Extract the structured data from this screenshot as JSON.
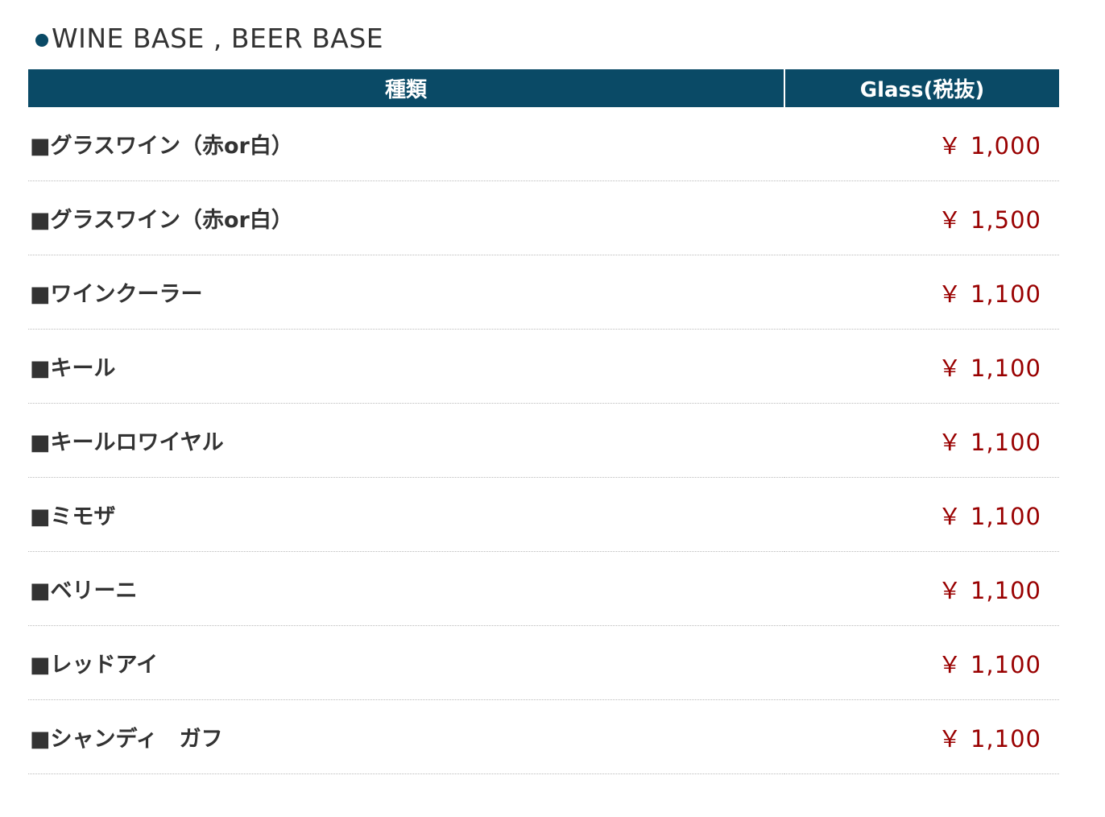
{
  "section_title": "WINE BASE , BEER BASE",
  "colors": {
    "header_bg": "#0a4a66",
    "price": "#990000"
  },
  "table": {
    "headers": [
      "種類",
      "Glass(税抜)"
    ],
    "rows": [
      {
        "name": "■グラスワイン（赤or白）",
        "price": "￥ 1,000"
      },
      {
        "name": "■グラスワイン（赤or白）",
        "price": "￥ 1,500"
      },
      {
        "name": "■ワインクーラー",
        "price": "￥ 1,100"
      },
      {
        "name": "■キール",
        "price": "￥ 1,100"
      },
      {
        "name": "■キールロワイヤル",
        "price": "￥ 1,100"
      },
      {
        "name": "■ミモザ",
        "price": "￥ 1,100"
      },
      {
        "name": "■ベリーニ",
        "price": "￥ 1,100"
      },
      {
        "name": "■レッドアイ",
        "price": "￥ 1,100"
      },
      {
        "name": "■シャンディ　ガフ",
        "price": "￥ 1,100"
      }
    ]
  }
}
